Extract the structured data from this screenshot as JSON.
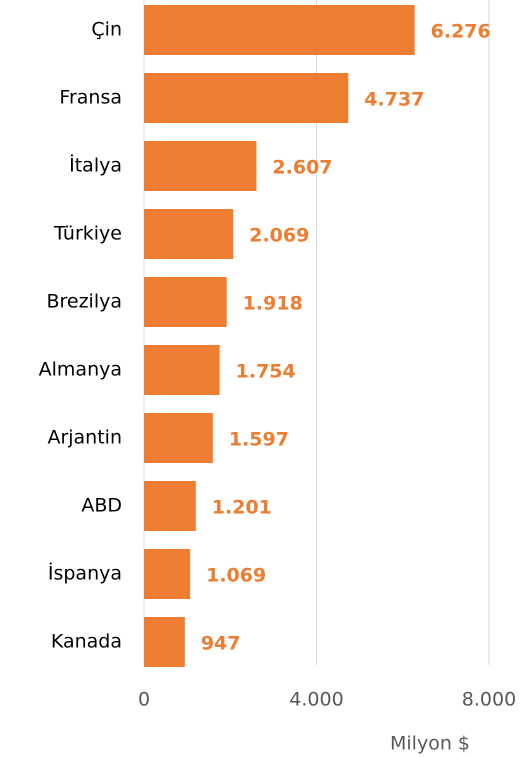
{
  "chart_data": {
    "type": "bar",
    "orientation": "horizontal",
    "categories": [
      "Çin",
      "Fransa",
      "İtalya",
      "Türkiye",
      "Brezilya",
      "Almanya",
      "Arjantin",
      "ABD",
      "İspanya",
      "Kanada"
    ],
    "values": [
      6276,
      4737,
      2607,
      2069,
      1918,
      1754,
      1597,
      1201,
      1069,
      947
    ],
    "value_labels": [
      "6.276",
      "4.737",
      "2.607",
      "2.069",
      "1.918",
      "1.754",
      "1.597",
      "1.201",
      "1.069",
      "947"
    ],
    "color": "#ed7d31",
    "xlim": [
      0,
      8000
    ],
    "xticks": [
      0,
      {
        "value": 4000,
        "label": "4.000"
      },
      {
        "value": 8000,
        "label": "8.000"
      }
    ],
    "x_label": "Milyon $",
    "grid": true
  }
}
